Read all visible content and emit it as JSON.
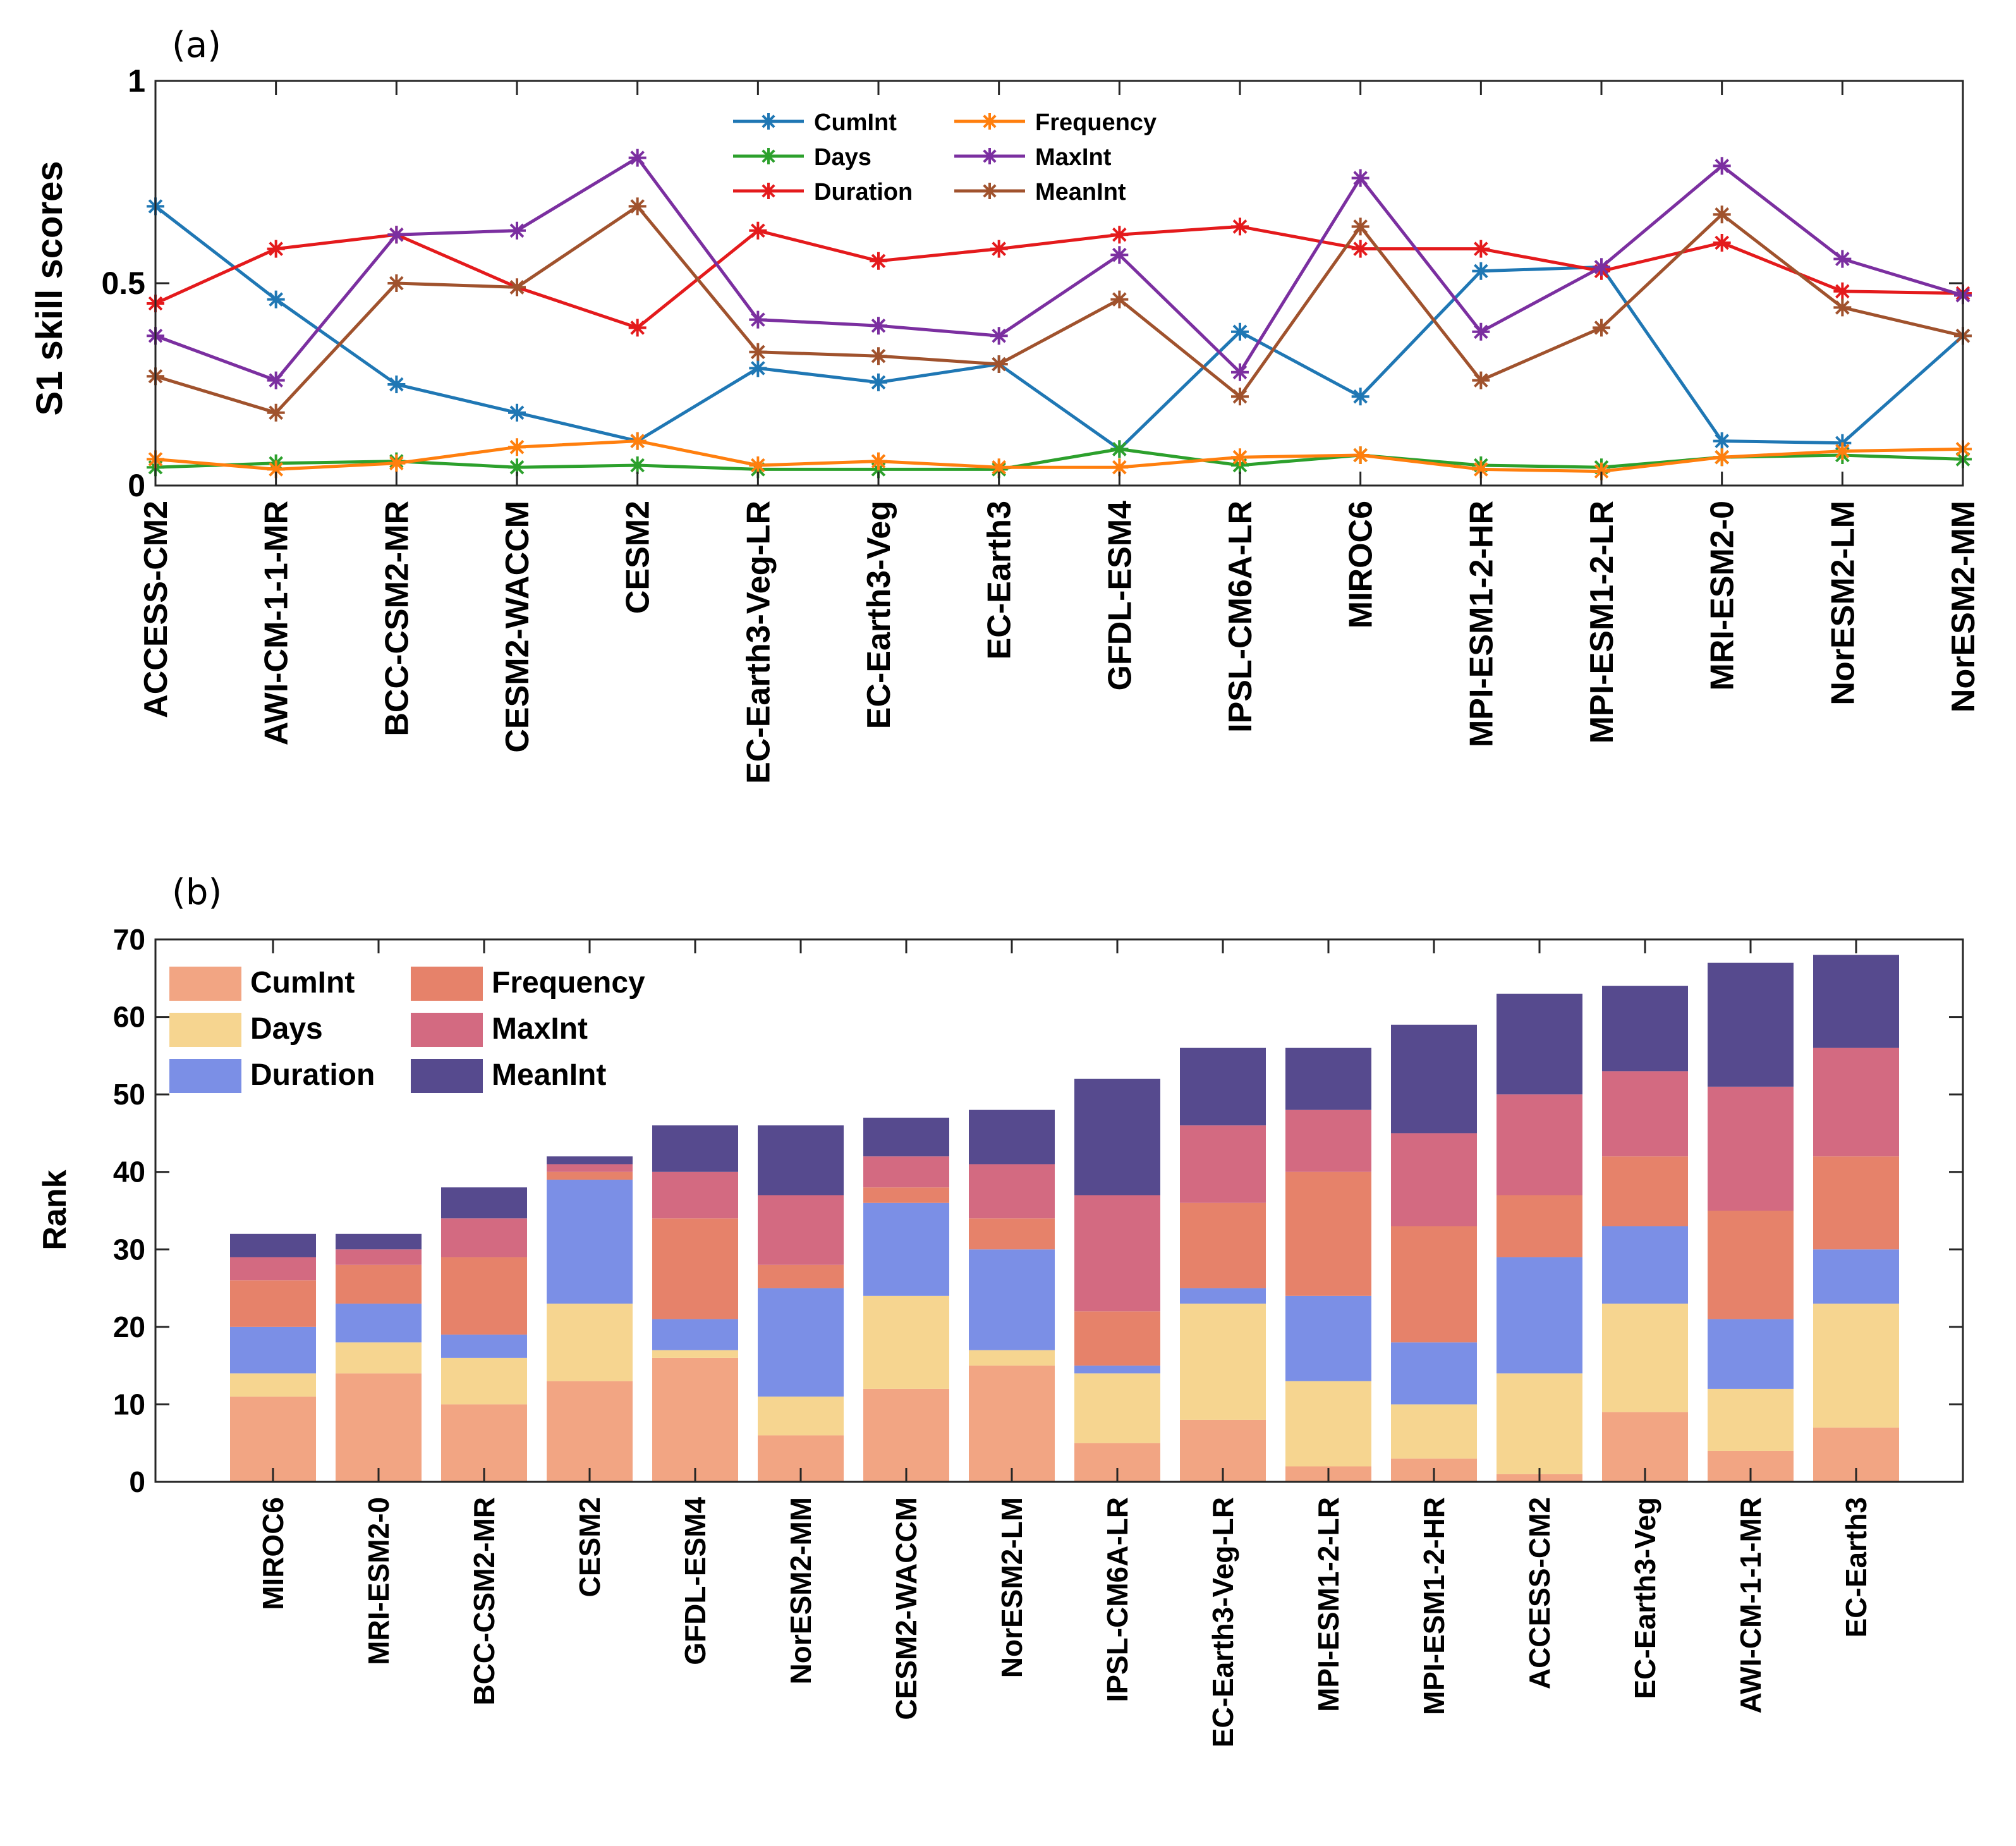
{
  "chart_data": [
    {
      "panel": "(a)",
      "type": "line",
      "title": "",
      "xlabel": "",
      "ylabel": "S1 skill scores",
      "ylim": [
        0,
        1
      ],
      "yticks": [
        0,
        0.5,
        1
      ],
      "ytick_labels": [
        "0",
        "0.5",
        "1"
      ],
      "legend_position": "top-center",
      "categories": [
        "ACCESS-CM2",
        "AWI-CM-1-1-MR",
        "BCC-CSM2-MR",
        "CESM2-WACCM",
        "CESM2",
        "EC-Earth3-Veg-LR",
        "EC-Earth3-Veg",
        "EC-Earth3",
        "GFDL-ESM4",
        "IPSL-CM6A-LR",
        "MIROC6",
        "MPI-ESM1-2-HR",
        "MPI-ESM1-2-LR",
        "MRI-ESM2-0",
        "NorESM2-LM",
        "NorESM2-MM"
      ],
      "series": [
        {
          "name": "CumInt",
          "color": "#1f77b4",
          "values": [
            0.69,
            0.46,
            0.25,
            0.18,
            0.11,
            0.29,
            0.255,
            0.3,
            0.09,
            0.38,
            0.22,
            0.53,
            0.54,
            0.11,
            0.105,
            0.37
          ]
        },
        {
          "name": "Days",
          "color": "#2ca02c",
          "values": [
            0.045,
            0.055,
            0.06,
            0.045,
            0.05,
            0.04,
            0.04,
            0.04,
            0.09,
            0.05,
            0.075,
            0.05,
            0.045,
            0.07,
            0.075,
            0.065
          ]
        },
        {
          "name": "Duration",
          "color": "#e41a1c",
          "values": [
            0.45,
            0.585,
            0.62,
            0.49,
            0.39,
            0.63,
            0.555,
            0.585,
            0.62,
            0.64,
            0.585,
            0.585,
            0.53,
            0.6,
            0.48,
            0.475
          ]
        },
        {
          "name": "Frequency",
          "color": "#ff7f0e",
          "values": [
            0.065,
            0.04,
            0.055,
            0.095,
            0.11,
            0.05,
            0.06,
            0.045,
            0.045,
            0.07,
            0.075,
            0.04,
            0.035,
            0.07,
            0.085,
            0.09
          ]
        },
        {
          "name": "MaxInt",
          "color": "#7b2fa0",
          "values": [
            0.37,
            0.26,
            0.62,
            0.63,
            0.81,
            0.41,
            0.395,
            0.37,
            0.57,
            0.28,
            0.76,
            0.38,
            0.54,
            0.79,
            0.56,
            0.47
          ]
        },
        {
          "name": "MeanInt",
          "color": "#a0522d",
          "values": [
            0.27,
            0.18,
            0.5,
            0.49,
            0.69,
            0.33,
            0.32,
            0.3,
            0.46,
            0.22,
            0.64,
            0.26,
            0.39,
            0.67,
            0.44,
            0.37
          ]
        }
      ]
    },
    {
      "panel": "(b)",
      "type": "bar",
      "stacked": true,
      "title": "",
      "xlabel": "",
      "ylabel": "Rank",
      "ylim": [
        0,
        70
      ],
      "yticks": [
        0,
        10,
        20,
        30,
        40,
        50,
        60,
        70
      ],
      "ytick_labels": [
        "0",
        "10",
        "20",
        "30",
        "40",
        "50",
        "60",
        "70"
      ],
      "legend_position": "top-left",
      "categories": [
        "MIROC6",
        "MRI-ESM2-0",
        "BCC-CSM2-MR",
        "CESM2",
        "GFDL-ESM4",
        "NorESM2-MM",
        "CESM2-WACCM",
        "NorESM2-LM",
        "IPSL-CM6A-LR",
        "EC-Earth3-Veg-LR",
        "MPI-ESM1-2-LR",
        "MPI-ESM1-2-HR",
        "ACCESS-CM2",
        "EC-Earth3-Veg",
        "AWI-CM-1-1-MR",
        "EC-Earth3"
      ],
      "series": [
        {
          "name": "CumInt",
          "color": "#f2a583",
          "values": [
            11,
            14,
            10,
            13,
            16,
            6,
            12,
            15,
            5,
            8,
            2,
            3,
            1,
            9,
            4,
            7
          ]
        },
        {
          "name": "Days",
          "color": "#f6d590",
          "values": [
            3,
            4,
            6,
            10,
            1,
            5,
            12,
            2,
            9,
            15,
            11,
            7,
            13,
            14,
            8,
            16
          ]
        },
        {
          "name": "Duration",
          "color": "#7b8fe6",
          "values": [
            6,
            5,
            3,
            16,
            4,
            14,
            12,
            13,
            1,
            2,
            11,
            8,
            15,
            10,
            9,
            7
          ]
        },
        {
          "name": "Frequency",
          "color": "#e6826a",
          "values": [
            6,
            5,
            10,
            1,
            13,
            3,
            2,
            4,
            7,
            11,
            16,
            15,
            8,
            9,
            14,
            12
          ]
        },
        {
          "name": "MaxInt",
          "color": "#d36a81",
          "values": [
            3,
            2,
            5,
            1,
            6,
            9,
            4,
            7,
            15,
            10,
            8,
            12,
            13,
            11,
            16,
            14
          ]
        },
        {
          "name": "MeanInt",
          "color": "#564a8e",
          "values": [
            3,
            2,
            4,
            1,
            6,
            9,
            5,
            7,
            15,
            10,
            8,
            14,
            13,
            11,
            16,
            12
          ]
        }
      ]
    }
  ]
}
